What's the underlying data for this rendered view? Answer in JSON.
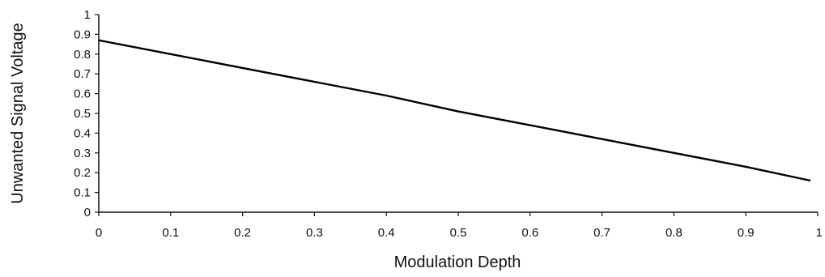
{
  "chart_data": {
    "type": "line",
    "title": "",
    "xlabel": "Modulation Depth",
    "ylabel": "Unwanted Signal Voltage",
    "xlim": [
      0,
      1
    ],
    "ylim": [
      0,
      1
    ],
    "x_ticks": [
      "0",
      "0.1",
      "0.2",
      "0.3",
      "0.4",
      "0.5",
      "0.6",
      "0.7",
      "0.8",
      "0.9",
      "1"
    ],
    "y_ticks": [
      "0",
      "0.1",
      "0.2",
      "0.3",
      "0.4",
      "0.5",
      "0.6",
      "0.7",
      "0.8",
      "0.9",
      "1"
    ],
    "grid": false,
    "legend": "none",
    "series": [
      {
        "x": [
          0,
          0.1,
          0.2,
          0.3,
          0.4,
          0.5,
          0.6,
          0.7,
          0.8,
          0.9,
          0.99
        ],
        "y": [
          0.87,
          0.8,
          0.73,
          0.66,
          0.59,
          0.51,
          0.44,
          0.37,
          0.3,
          0.23,
          0.16
        ],
        "color": "#000000"
      }
    ]
  }
}
